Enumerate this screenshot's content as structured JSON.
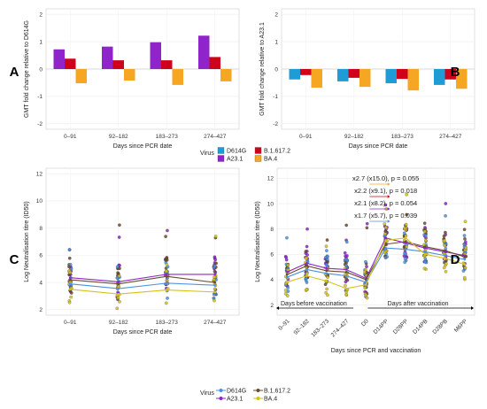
{
  "figure": {
    "legend_top": {
      "title": "Virus",
      "entries": [
        {
          "name": "D614G",
          "color": "#1f9bd6"
        },
        {
          "name": "B.1.617.2",
          "color": "#d0021b"
        },
        {
          "name": "A23.1",
          "color": "#8e24c9"
        },
        {
          "name": "BA.4",
          "color": "#f5a623"
        }
      ]
    },
    "legend_bottom": {
      "title": "Virus",
      "entries": [
        {
          "name": "D614G",
          "color": "#4a90e2"
        },
        {
          "name": "B.1.617.2",
          "color": "#6b4b2a"
        },
        {
          "name": "A23.1",
          "color": "#8e24c9"
        },
        {
          "name": "BA.4",
          "color": "#d4c21a"
        }
      ]
    }
  },
  "chart_data": [
    {
      "panel": "A",
      "type": "bar",
      "ylabel": "GMT fold change relative to D614G",
      "xlabel": "Days since PCR date",
      "categories": [
        "0–91",
        "92–182",
        "183–273",
        "274–427"
      ],
      "ylim": [
        -2.2,
        2.2
      ],
      "yticks": [
        -2,
        -1,
        0,
        1,
        2
      ],
      "series": [
        {
          "name": "A23.1",
          "color": "#8e24c9",
          "values": [
            0.72,
            0.82,
            0.98,
            1.22
          ]
        },
        {
          "name": "B.1.617.2",
          "color": "#d0021b",
          "values": [
            0.38,
            0.32,
            0.32,
            0.44
          ]
        },
        {
          "name": "BA.4",
          "color": "#f5a623",
          "values": [
            -0.52,
            -0.42,
            -0.58,
            -0.45
          ]
        }
      ]
    },
    {
      "panel": "B",
      "type": "bar",
      "ylabel": "GMT fold change relative to A23.1",
      "xlabel": "Days since PCR date",
      "categories": [
        "0–91",
        "92–182",
        "183–273",
        "274–427"
      ],
      "ylim": [
        -2.2,
        2.2
      ],
      "yticks": [
        -2,
        -1,
        0,
        1,
        2
      ],
      "series": [
        {
          "name": "D614G",
          "color": "#1f9bd6",
          "values": [
            -0.38,
            -0.45,
            -0.52,
            -0.58
          ]
        },
        {
          "name": "B.1.617.2",
          "color": "#d0021b",
          "values": [
            -0.22,
            -0.32,
            -0.36,
            -0.38
          ]
        },
        {
          "name": "BA.4",
          "color": "#f5a623",
          "values": [
            -0.68,
            -0.65,
            -0.78,
            -0.72
          ]
        }
      ]
    },
    {
      "panel": "C",
      "type": "line",
      "ylabel": "Log Neutralisation titre (ID50)",
      "xlabel": "Days since PCR date",
      "categories": [
        "0–91",
        "92–182",
        "183–273",
        "274–427"
      ],
      "ylim": [
        1.6,
        12.4
      ],
      "yticks": [
        2,
        4,
        6,
        8,
        10,
        12
      ],
      "series": [
        {
          "name": "A23.1",
          "color": "#8e24c9",
          "values": [
            4.35,
            4.05,
            4.6,
            4.6
          ]
        },
        {
          "name": "B.1.617.2",
          "color": "#6b4b2a",
          "values": [
            4.2,
            3.9,
            4.45,
            4.0
          ]
        },
        {
          "name": "D614G",
          "color": "#4a90e2",
          "values": [
            3.9,
            3.55,
            3.95,
            3.8
          ]
        },
        {
          "name": "BA.4",
          "color": "#d4c21a",
          "values": [
            3.5,
            3.15,
            3.45,
            3.3
          ]
        }
      ]
    },
    {
      "panel": "D",
      "type": "line",
      "ylabel": "Log Neutralisation titre (ID50)",
      "xlabel": "Days since PCR and vaccination",
      "categories": [
        "0–91",
        "92–182",
        "183–273",
        "274–427",
        "D0",
        "D14PP",
        "D28PP",
        "D14PB",
        "D28PB",
        "M6PP"
      ],
      "ylim": [
        1.2,
        12.8
      ],
      "yticks": [
        2,
        4,
        6,
        8,
        10,
        12
      ],
      "series": [
        {
          "name": "A23.1",
          "color": "#8e24c9",
          "values": [
            4.6,
            5.3,
            4.9,
            4.8,
            4.1,
            7.3,
            6.9,
            6.5,
            6.2,
            5.9
          ]
        },
        {
          "name": "B.1.617.2",
          "color": "#6b4b2a",
          "values": [
            4.4,
            5.1,
            4.7,
            4.6,
            4.0,
            6.8,
            7.0,
            6.6,
            6.3,
            5.8
          ]
        },
        {
          "name": "D614G",
          "color": "#4a90e2",
          "values": [
            4.2,
            4.8,
            4.5,
            4.3,
            3.8,
            6.5,
            6.4,
            6.2,
            5.9,
            5.6
          ]
        },
        {
          "name": "BA.4",
          "color": "#d4c21a",
          "values": [
            3.8,
            4.3,
            3.9,
            3.3,
            3.6,
            7.1,
            7.3,
            6.0,
            5.7,
            5.2
          ]
        }
      ],
      "annotations": [
        {
          "text": "x2.7 (x15.0), p = 0.055",
          "color": "#f5a623"
        },
        {
          "text": "x2.2 (x9.1), p = 0.018",
          "color": "#d0021b"
        },
        {
          "text": "x2.1 (x8.2), p = 0.054",
          "color": "#8e24c9"
        },
        {
          "text": "x1.7 (x5.7), p = 0.039",
          "color": "#4a90e2"
        }
      ],
      "phase_labels": [
        "Days before vaccination",
        "Days after  vaccination"
      ]
    }
  ]
}
